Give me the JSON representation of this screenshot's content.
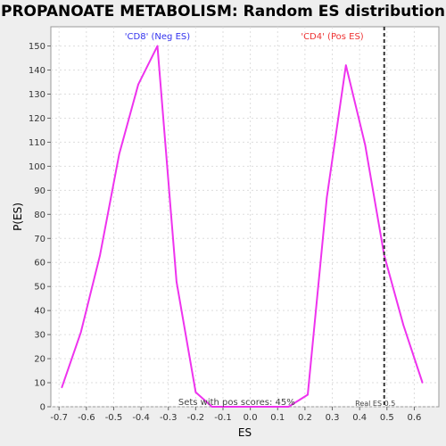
{
  "chart_data": {
    "type": "line",
    "title": "PROPANOATE METABOLISM: Random ES distribution",
    "xlabel": "ES",
    "ylabel": "P(ES)",
    "xlim": [
      -0.73,
      0.69
    ],
    "ylim": [
      0,
      158
    ],
    "xticks": [
      "-0.7",
      "-0.6",
      "-0.5",
      "-0.4",
      "-0.3",
      "-0.2",
      "-0.1",
      "0.0",
      "0.1",
      "0.2",
      "0.3",
      "0.4",
      "0.5",
      "0.6"
    ],
    "yticks": [
      "0",
      "10",
      "20",
      "30",
      "40",
      "50",
      "60",
      "70",
      "80",
      "90",
      "100",
      "110",
      "120",
      "130",
      "140",
      "150"
    ],
    "grid": true,
    "series": [
      {
        "color": "#ee33ee",
        "points": [
          {
            "x": -0.69,
            "y": 8
          },
          {
            "x": -0.62,
            "y": 31
          },
          {
            "x": -0.55,
            "y": 63
          },
          {
            "x": -0.48,
            "y": 105
          },
          {
            "x": -0.41,
            "y": 134
          },
          {
            "x": -0.34,
            "y": 150
          },
          {
            "x": -0.27,
            "y": 52
          },
          {
            "x": -0.2,
            "y": 6
          },
          {
            "x": -0.14,
            "y": 0
          },
          {
            "x": -0.07,
            "y": 0
          },
          {
            "x": 0.0,
            "y": 0
          },
          {
            "x": 0.07,
            "y": 0
          },
          {
            "x": 0.14,
            "y": 0
          },
          {
            "x": 0.21,
            "y": 5
          },
          {
            "x": 0.28,
            "y": 87
          },
          {
            "x": 0.35,
            "y": 142
          },
          {
            "x": 0.42,
            "y": 109
          },
          {
            "x": 0.49,
            "y": 63
          },
          {
            "x": 0.56,
            "y": 34
          },
          {
            "x": 0.63,
            "y": 10
          }
        ]
      }
    ],
    "real_es": 0.49,
    "annotations": {
      "neg_label": "'CD8' (Neg ES)",
      "pos_label": "'CD4' (Pos ES)",
      "pos_scores": "Sets with pos scores: 45%",
      "real_es_label": "Real ES 0.5"
    },
    "colors": {
      "neg": "#3333ee",
      "pos": "#ee3333",
      "grid": "#dddddd",
      "plot_bg": "#ffffff",
      "real_es_line": "#333333"
    }
  }
}
